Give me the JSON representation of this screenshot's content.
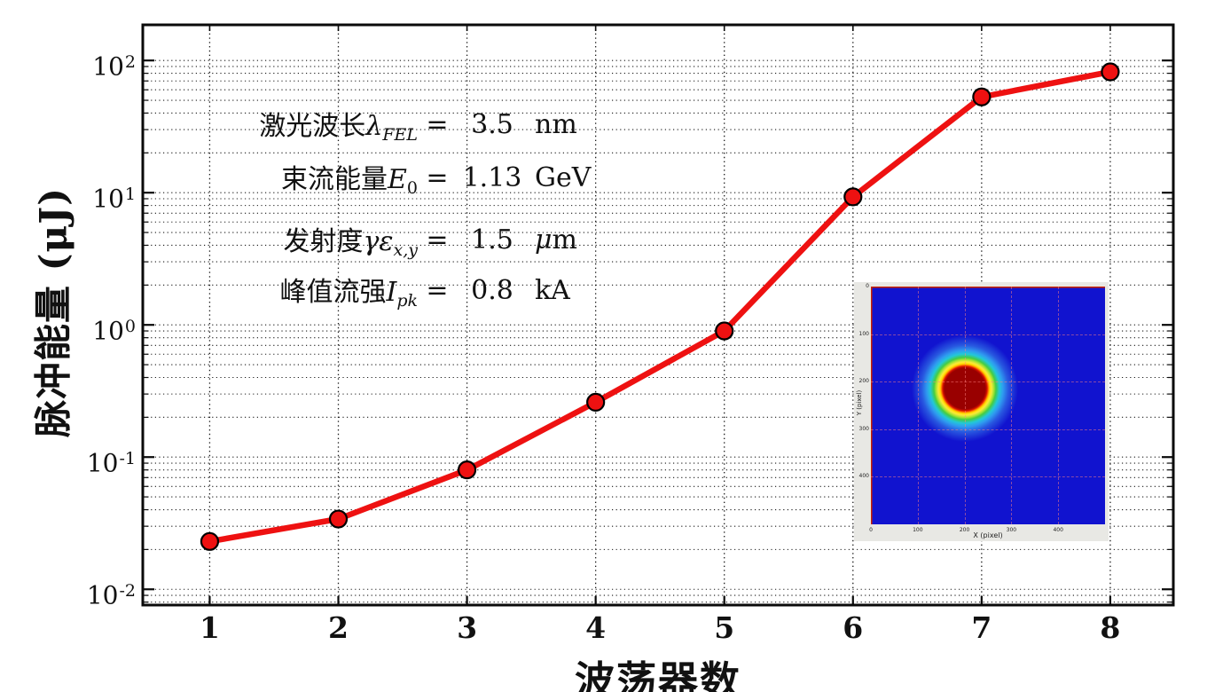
{
  "figure": {
    "background": "#ffffff",
    "border_color": "#0a0a0a",
    "grid_color": "#1a1a1a"
  },
  "chart_data": {
    "type": "line",
    "title": "",
    "xlabel": "波荡器数",
    "ylabel": "脉冲能量 (μJ)",
    "x": [
      1,
      2,
      3,
      4,
      5,
      6,
      7,
      8
    ],
    "values": [
      0.023,
      0.034,
      0.08,
      0.26,
      0.9,
      9.3,
      53,
      82
    ],
    "series_name": "脉冲能量",
    "x_ticks": [
      "1",
      "2",
      "3",
      "4",
      "5",
      "6",
      "7",
      "8"
    ],
    "y_tick_exponents": [
      2,
      1,
      0,
      -1,
      -2
    ],
    "y_scale": "log",
    "xlim": [
      0.48,
      8.49
    ],
    "ylim": [
      0.0076,
      186
    ],
    "grid": "dotted-both-major-minor",
    "legend": "none",
    "line_color": "#ee1111",
    "marker": "circle",
    "marker_color": "#ee1111",
    "marker_edge_color": "#000000"
  },
  "annotations": [
    {
      "label": "激光波长",
      "symbol": "λ",
      "sub": "FEL",
      "eq": "=",
      "value": "3.5",
      "unit": "nm"
    },
    {
      "label": "束流能量",
      "symbol": "E",
      "sub": "0",
      "eq": "=",
      "value": "1.13",
      "unit": "GeV"
    },
    {
      "label": "发射度",
      "symbol": "γε",
      "sub": "x,y",
      "eq": "=",
      "value": "1.5",
      "unit": "μm"
    },
    {
      "label": "峰值流强",
      "symbol": "I",
      "sub": "pk",
      "eq": "=",
      "value": "0.8",
      "unit": "kA"
    }
  ],
  "inset": {
    "xlabel": "X (pixel)",
    "ylabel": "Y (pixel)",
    "x_ticks": [
      "0",
      "100",
      "200",
      "300",
      "400"
    ],
    "y_ticks": [
      "0",
      "100",
      "200",
      "300",
      "400"
    ],
    "axis_range": [
      0,
      500
    ],
    "panel_color": "#e8e8e4",
    "background_color": "#1113cf",
    "spot_center": [
      200,
      215
    ],
    "spot_core_color": "#990000",
    "spot_ring_colors": [
      "#ff7700",
      "#ffdd00",
      "#44cc44",
      "#22c8d8"
    ]
  }
}
